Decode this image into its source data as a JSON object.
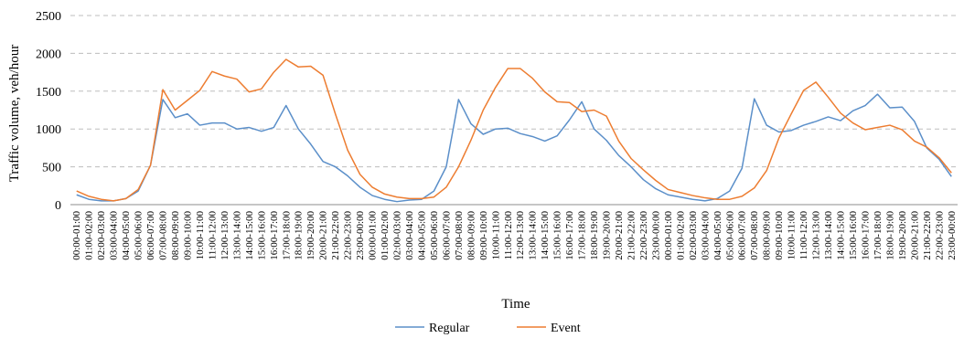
{
  "chart_data": {
    "type": "line",
    "title": "",
    "xlabel": "Time",
    "ylabel": "Traffic volume, veh/hour",
    "ylim": [
      0,
      2500
    ],
    "yticks": [
      0,
      500,
      1000,
      1500,
      2000,
      2500
    ],
    "grid": true,
    "legend": "bottom",
    "categories": [
      "00:00-01:00",
      "01:00-02:00",
      "02:00-03:00",
      "03:00-04:00",
      "04:00-05:00",
      "05:00-06:00",
      "06:00-07:00",
      "07:00-08:00",
      "08:00-09:00",
      "09:00-10:00",
      "10:00-11:00",
      "11:00-12:00",
      "12:00-13:00",
      "13:00-14:00",
      "14:00-15:00",
      "15:00-16:00",
      "16:00-17:00",
      "17:00-18:00",
      "18:00-19:00",
      "19:00-20:00",
      "20:00-21:00",
      "21:00-22:00",
      "22:00-23:00",
      "23:00-00:00",
      "00:00-01:00",
      "01:00-02:00",
      "02:00-03:00",
      "03:00-04:00",
      "04:00-05:00",
      "05:00-06:00",
      "06:00-07:00",
      "07:00-08:00",
      "08:00-09:00",
      "09:00-10:00",
      "10:00-11:00",
      "11:00-12:00",
      "12:00-13:00",
      "13:00-14:00",
      "14:00-15:00",
      "15:00-16:00",
      "16:00-17:00",
      "17:00-18:00",
      "18:00-19:00",
      "19:00-20:00",
      "20:00-21:00",
      "21:00-22:00",
      "22:00-23:00",
      "23:00-00:00",
      "00:00-01:00",
      "01:00-02:00",
      "02:00-03:00",
      "03:00-04:00",
      "04:00-05:00",
      "05:00-06:00",
      "06:00-07:00",
      "07:00-08:00",
      "08:00-09:00",
      "09:00-10:00",
      "10:00-11:00",
      "11:00-12:00",
      "12:00-13:00",
      "13:00-14:00",
      "14:00-15:00",
      "15:00-16:00",
      "16:00-17:00",
      "17:00-18:00",
      "18:00-19:00",
      "19:00-20:00",
      "20:00-21:00",
      "21:00-22:00",
      "22:00-23:00",
      "23:00-00:00"
    ],
    "series": [
      {
        "name": "Regular",
        "color": "#5b8fc9",
        "values": [
          130,
          70,
          50,
          50,
          80,
          180,
          520,
          1390,
          1150,
          1200,
          1050,
          1080,
          1080,
          1000,
          1020,
          970,
          1020,
          1310,
          1000,
          800,
          570,
          500,
          380,
          230,
          120,
          70,
          40,
          60,
          70,
          180,
          500,
          1390,
          1070,
          930,
          1000,
          1010,
          940,
          900,
          840,
          910,
          1120,
          1360,
          1000,
          850,
          650,
          500,
          330,
          210,
          130,
          100,
          70,
          50,
          80,
          180,
          480,
          1400,
          1050,
          960,
          980,
          1050,
          1100,
          1160,
          1110,
          1240,
          1310,
          1460,
          1280,
          1290,
          1100,
          750,
          600,
          370
        ]
      },
      {
        "name": "Event",
        "color": "#ed7d31",
        "values": [
          180,
          110,
          70,
          50,
          80,
          200,
          520,
          1520,
          1250,
          1380,
          1510,
          1760,
          1700,
          1660,
          1490,
          1530,
          1750,
          1920,
          1820,
          1830,
          1710,
          1200,
          720,
          400,
          230,
          140,
          100,
          80,
          80,
          100,
          230,
          500,
          850,
          1250,
          1550,
          1800,
          1800,
          1670,
          1490,
          1360,
          1350,
          1230,
          1250,
          1170,
          840,
          610,
          460,
          320,
          200,
          160,
          120,
          90,
          70,
          70,
          110,
          220,
          450,
          880,
          1200,
          1510,
          1620,
          1420,
          1210,
          1080,
          990,
          1020,
          1050,
          990,
          840,
          760,
          620,
          420
        ]
      }
    ]
  }
}
